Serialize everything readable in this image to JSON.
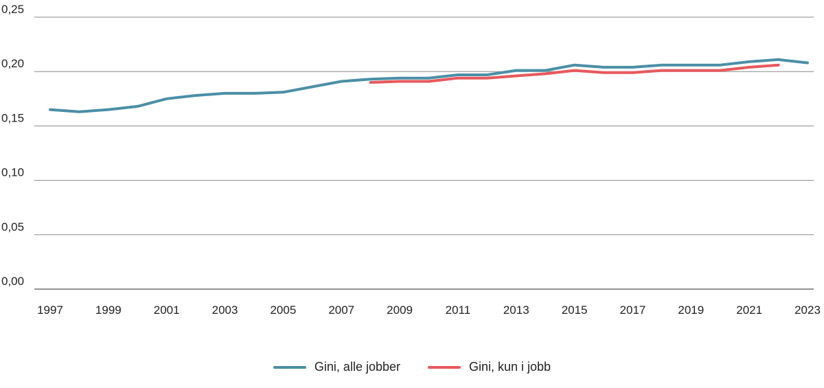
{
  "chart_data": {
    "type": "line",
    "title": "",
    "xlabel": "",
    "ylabel": "",
    "ylim": [
      0,
      0.25
    ],
    "yticks": [
      "0,00",
      "0,05",
      "0,10",
      "0,15",
      "0,20",
      "0,25"
    ],
    "ytick_values": [
      0,
      0.05,
      0.1,
      0.15,
      0.2,
      0.25
    ],
    "x": [
      1997,
      1998,
      1999,
      2000,
      2001,
      2002,
      2003,
      2004,
      2005,
      2006,
      2007,
      2008,
      2009,
      2010,
      2011,
      2012,
      2013,
      2014,
      2015,
      2016,
      2017,
      2018,
      2019,
      2020,
      2021,
      2022,
      2023
    ],
    "xticks": [
      "1997",
      "1999",
      "2001",
      "2003",
      "2005",
      "2007",
      "2009",
      "2011",
      "2013",
      "2015",
      "2017",
      "2019",
      "2021",
      "2023"
    ],
    "xtick_values": [
      1997,
      1999,
      2001,
      2003,
      2005,
      2007,
      2009,
      2011,
      2013,
      2015,
      2017,
      2019,
      2021,
      2023
    ],
    "legend_position": "bottom-center",
    "series": [
      {
        "name": "Gini, alle jobber",
        "color": "#4a8fa6",
        "values": [
          0.165,
          0.163,
          0.165,
          0.168,
          0.175,
          0.178,
          0.18,
          0.18,
          0.181,
          0.186,
          0.191,
          0.193,
          0.194,
          0.194,
          0.197,
          0.197,
          0.201,
          0.201,
          0.206,
          0.204,
          0.204,
          0.206,
          0.206,
          0.206,
          0.209,
          0.211,
          0.208
        ]
      },
      {
        "name": "Gini, kun i jobb",
        "color": "#e8585c",
        "values": [
          null,
          null,
          null,
          null,
          null,
          null,
          null,
          null,
          null,
          null,
          null,
          0.19,
          0.191,
          0.191,
          0.194,
          0.194,
          0.196,
          0.198,
          0.201,
          0.199,
          0.199,
          0.201,
          0.201,
          0.201,
          0.204,
          0.206,
          null
        ]
      }
    ]
  }
}
